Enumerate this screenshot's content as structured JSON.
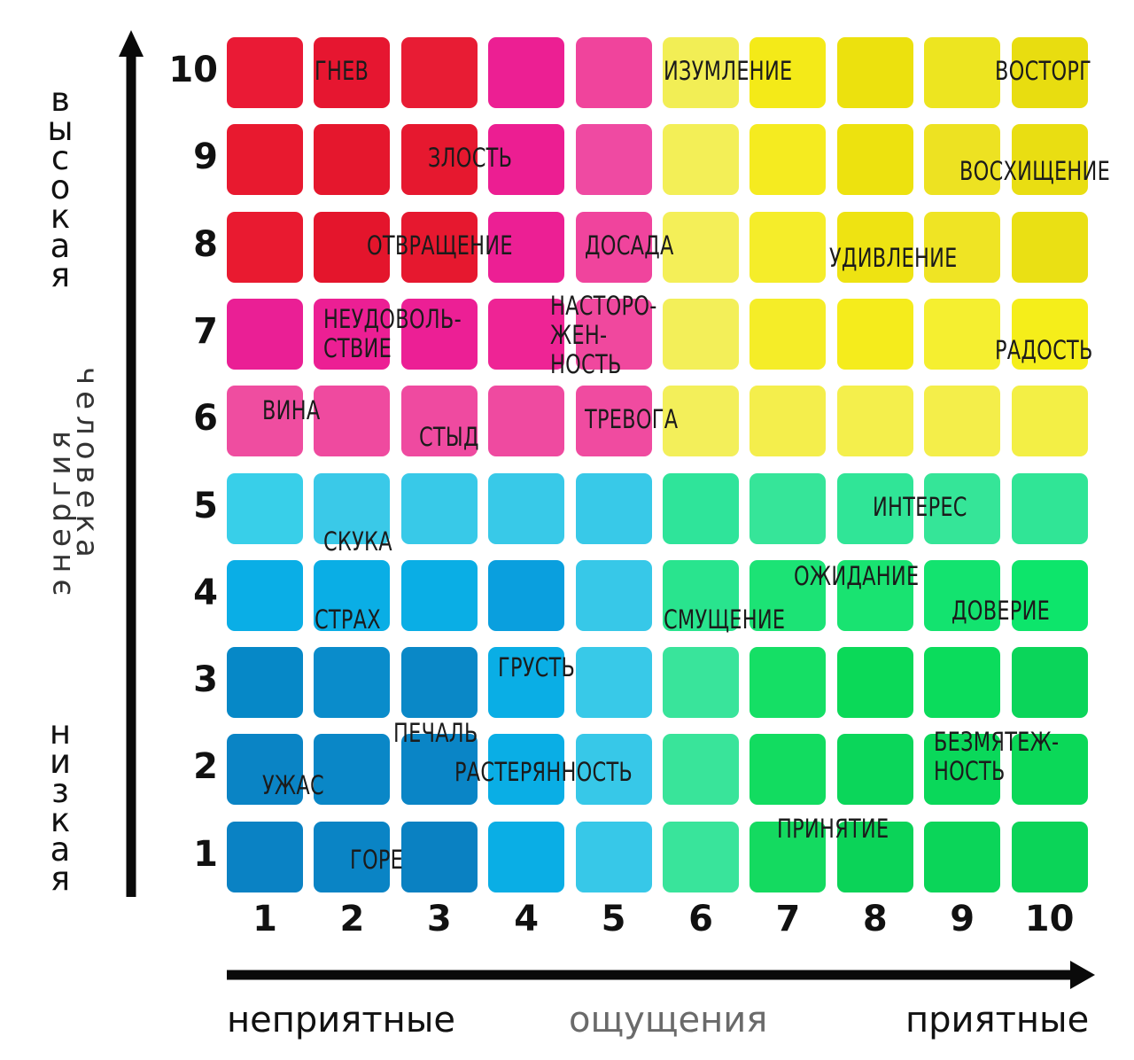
{
  "chart_data": {
    "type": "heatmap",
    "x_ticks": [
      "1",
      "2",
      "3",
      "4",
      "5",
      "6",
      "7",
      "8",
      "9",
      "10"
    ],
    "y_ticks": [
      "10",
      "9",
      "8",
      "7",
      "6",
      "5",
      "4",
      "3",
      "2",
      "1"
    ],
    "x_axis": {
      "left": "неприятные",
      "center": "ощущения",
      "right": "приятные"
    },
    "y_axis": {
      "top": [
        "в",
        "ы",
        "с",
        "о",
        "к",
        "а",
        "я"
      ],
      "bottom": [
        "н",
        "и",
        "з",
        "к",
        "а",
        "я"
      ],
      "middle_1": "энергия",
      "middle_2": "человека"
    },
    "cell_colors": [
      [
        "#ea1a35",
        "#e61630",
        "#e81c34",
        "#ec1f93",
        "#f0449c",
        "#f2ee55",
        "#f4ea18",
        "#ece10e",
        "#ede520",
        "#e8dd10"
      ],
      [
        "#e8192f",
        "#e5172d",
        "#e6182f",
        "#ec1e92",
        "#ef4aa2",
        "#f3ef57",
        "#f5eb20",
        "#ede20f",
        "#ede222",
        "#e9de12"
      ],
      [
        "#e91a30",
        "#e4152c",
        "#e6182f",
        "#ec1f94",
        "#f0449d",
        "#f4ef58",
        "#f5ed2a",
        "#eee312",
        "#efe424",
        "#eae014"
      ],
      [
        "#ea1f95",
        "#ec1f94",
        "#ec1f95",
        "#ee2495",
        "#f0489e",
        "#f3ef59",
        "#f5ed28",
        "#f5ec1c",
        "#f5ef30",
        "#f5ee1a"
      ],
      [
        "#ef4da0",
        "#ef4a9f",
        "#ef4aa0",
        "#ef4aa0",
        "#f04ba0",
        "#f3ef5a",
        "#f4ee4c",
        "#f4ef4c",
        "#f4ee4a",
        "#f3ef45"
      ],
      [
        "#38cfe9",
        "#3ac9e8",
        "#38c9e8",
        "#38c9e8",
        "#38c9e8",
        "#2fe49a",
        "#36e599",
        "#30e597",
        "#35e598",
        "#30e596"
      ],
      [
        "#0aaee6",
        "#0aaee5",
        "#0aaee5",
        "#0a9fde",
        "#37c8e8",
        "#29e48e",
        "#1ce375",
        "#19e371",
        "#13e36f",
        "#0de56b"
      ],
      [
        "#0688c7",
        "#0a8ccb",
        "#0a88c7",
        "#0aaee5",
        "#38c9e8",
        "#39e49b",
        "#15df65",
        "#0bd958",
        "#0bdc5c",
        "#0bd55a"
      ],
      [
        "#0a84c5",
        "#0a87c7",
        "#0a85c6",
        "#0aaee5",
        "#37c8e8",
        "#39e49a",
        "#12dc60",
        "#0bd65a",
        "#0ad85a",
        "#0bd858"
      ],
      [
        "#0a82c4",
        "#0a84c5",
        "#0a81c2",
        "#0aaee5",
        "#37c8e8",
        "#39e49b",
        "#14da60",
        "#0bd358",
        "#0bd559",
        "#0bd458"
      ]
    ],
    "labels": [
      {
        "text": "ГНЕВ",
        "x": 1.5,
        "y": 10
      },
      {
        "text": "ИЗУМЛЕНИЕ",
        "x": 5.5,
        "y": 10
      },
      {
        "text": "ВОСТОРГ",
        "x": 9.3,
        "y": 10
      },
      {
        "text": "ЗЛОСТЬ",
        "x": 2.8,
        "y": 9
      },
      {
        "text": "ВОСХИЩЕНИЕ",
        "x": 8.9,
        "y": 8.85
      },
      {
        "text": "ОТВРАЩЕНИЕ",
        "x": 2.1,
        "y": 8
      },
      {
        "text": "ДОСАДА",
        "x": 4.6,
        "y": 8
      },
      {
        "text": "УДИВЛЕНИЕ",
        "x": 7.4,
        "y": 7.85
      },
      {
        "text": "НЕУДОВОЛЬ-\nСТВИЕ",
        "x": 1.6,
        "y": 7.15
      },
      {
        "text": "НАСТОРО-\nЖЕН-\nНОСТЬ",
        "x": 4.2,
        "y": 7.3
      },
      {
        "text": "РАДОСТЬ",
        "x": 9.3,
        "y": 6.8
      },
      {
        "text": "ВИНА",
        "x": 0.9,
        "y": 6.1
      },
      {
        "text": "СТЫД",
        "x": 2.7,
        "y": 5.8
      },
      {
        "text": "ТРЕВОГА",
        "x": 4.6,
        "y": 6
      },
      {
        "text": "ИНТЕРЕС",
        "x": 7.9,
        "y": 5
      },
      {
        "text": "СКУКА",
        "x": 1.6,
        "y": 4.6
      },
      {
        "text": "ОЖИДАНИЕ",
        "x": 7.0,
        "y": 4.2
      },
      {
        "text": "ДОВЕРИЕ",
        "x": 8.8,
        "y": 3.8
      },
      {
        "text": "СТРАХ",
        "x": 1.5,
        "y": 3.7
      },
      {
        "text": "СМУЩЕНИЕ",
        "x": 5.5,
        "y": 3.7
      },
      {
        "text": "ГРУСТЬ",
        "x": 3.6,
        "y": 3.15
      },
      {
        "text": "ПЕЧАЛЬ",
        "x": 2.4,
        "y": 2.4
      },
      {
        "text": "БЕЗМЯТЕЖ-\nНОСТЬ",
        "x": 8.6,
        "y": 2.3
      },
      {
        "text": "УЖАС",
        "x": 0.9,
        "y": 1.8
      },
      {
        "text": "РАСТЕРЯННОСТЬ",
        "x": 3.1,
        "y": 1.95
      },
      {
        "text": "ПРИНЯТИЕ",
        "x": 6.8,
        "y": 1.3
      },
      {
        "text": "ГОРЕ",
        "x": 1.9,
        "y": 0.95
      }
    ]
  }
}
